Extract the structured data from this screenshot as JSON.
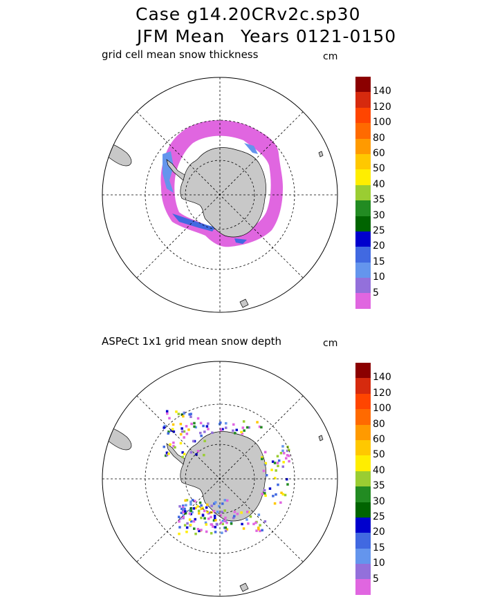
{
  "header": {
    "case_line": "Case g14.20CRv2c.sp30",
    "season": "JFM Mean",
    "years": "Years 0121-0150"
  },
  "panels": [
    {
      "label": "grid cell mean snow thickness",
      "unit": "cm"
    },
    {
      "label": "ASPeCt 1x1 grid mean snow depth",
      "unit": "cm"
    }
  ],
  "colorbar": {
    "levels": [
      "140",
      "120",
      "100",
      "80",
      "60",
      "50",
      "40",
      "35",
      "30",
      "25",
      "20",
      "15",
      "10",
      "5"
    ],
    "colors": [
      "#8b0000",
      "#d62a0e",
      "#ff4500",
      "#ff6a00",
      "#ff9a00",
      "#ffc800",
      "#ffee00",
      "#9acd32",
      "#228b22",
      "#006400",
      "#0000cd",
      "#4169e1",
      "#6495ed",
      "#9370db",
      "#e066e0"
    ]
  },
  "chart_data": [
    {
      "type": "map",
      "projection": "south polar stereographic",
      "title": "grid cell mean snow thickness",
      "units": "cm",
      "color_levels": [
        5,
        10,
        15,
        20,
        25,
        30,
        35,
        40,
        50,
        60,
        80,
        100,
        120,
        140
      ]
    },
    {
      "type": "map",
      "projection": "south polar stereographic",
      "title": "ASPeCt 1x1 grid mean snow depth",
      "units": "cm",
      "color_levels": [
        5,
        10,
        15,
        20,
        25,
        30,
        35,
        40,
        50,
        60,
        80,
        100,
        120,
        140
      ]
    }
  ]
}
